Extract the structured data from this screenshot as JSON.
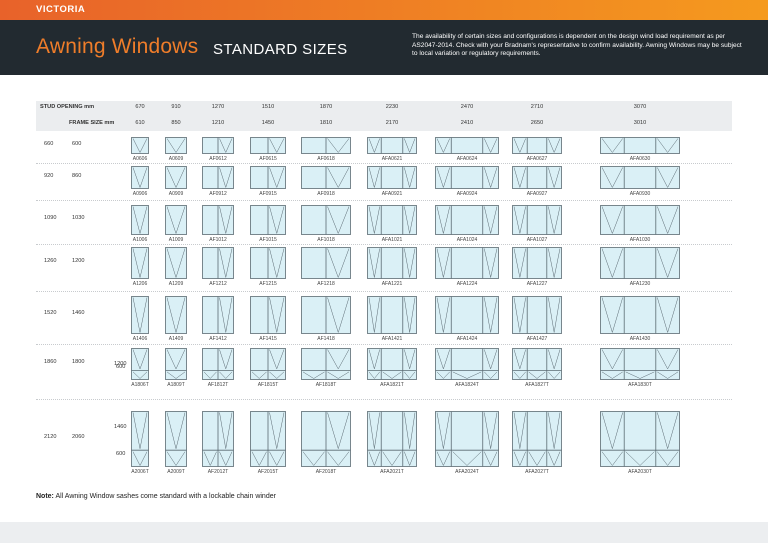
{
  "region": "VICTORIA",
  "title": "Awning Windows",
  "subtitle": "STANDARD SIZES",
  "description": "The availability of certain sizes and configurations is dependent on the design wind load requirement as per AS2047-2014. Check with your Bradnam's representative to confirm availability. Awning Windows may be subject to local variation or regulatory requirements.",
  "stud_opening_label": "STUD OPENING mm",
  "frame_size_label": "FRAME SIZE mm",
  "stud_openings": [
    "670",
    "910",
    "1270",
    "1510",
    "1870",
    "2230",
    "2470",
    "2710",
    "3070"
  ],
  "frame_sizes": [
    "610",
    "850",
    "1210",
    "1450",
    "1810",
    "2170",
    "2410",
    "2650",
    "3010"
  ],
  "rows": [
    {
      "stud": "660",
      "frame": "600",
      "codes": [
        "A0606",
        "A0609",
        "AF0612",
        "AF0615",
        "AF0618",
        "AFA0621",
        "AFA0624",
        "AFA0627",
        "AFA0630"
      ]
    },
    {
      "stud": "920",
      "frame": "860",
      "codes": [
        "A0906",
        "A0909",
        "AF0912",
        "AF0915",
        "AF0918",
        "AFA0921",
        "AFA0924",
        "AFA0927",
        "AFA0930"
      ]
    },
    {
      "stud": "1090",
      "frame": "1030",
      "codes": [
        "A1006",
        "A1009",
        "AF1012",
        "AF1015",
        "AF1018",
        "AFA1021",
        "AFA1024",
        "AFA1027",
        "AFA1030"
      ]
    },
    {
      "stud": "1260",
      "frame": "1200",
      "codes": [
        "A1206",
        "A1209",
        "AF1212",
        "AF1215",
        "AF1218",
        "AFA1221",
        "AFA1224",
        "AFA1227",
        "AFA1230"
      ]
    },
    {
      "stud": "1520",
      "frame": "1460",
      "codes": [
        "A1406",
        "A1409",
        "AF1412",
        "AF1415",
        "AF1418",
        "AFA1421",
        "AFA1424",
        "AFA1427",
        "AFA1430"
      ]
    },
    {
      "stud": "1860",
      "frame": "1800",
      "split": [
        "1200",
        "600"
      ],
      "codes": [
        "A1806T",
        "A1809T",
        "AF1812T",
        "AF1815T",
        "AF1818T",
        "AFA1821T",
        "AFA1824T",
        "AFA1827T",
        "AFA1830T"
      ]
    },
    {
      "stud": "2120",
      "frame": "2060",
      "split": [
        "1460",
        "600"
      ],
      "codes": [
        "A2006T",
        "A2009T",
        "AF2012T",
        "AF2015T",
        "AF2018T",
        "AFA2021T",
        "AFA2024T",
        "AFA2027T",
        "AFA2030T"
      ]
    }
  ],
  "note_label": "Note:",
  "note_text": " All Awning Window sashes come standard with a lockable chain winder",
  "colors": {
    "accent": "#ef7d2a",
    "dark": "#222a30",
    "glass": "#daf0f6",
    "frame": "#5a6a72"
  }
}
